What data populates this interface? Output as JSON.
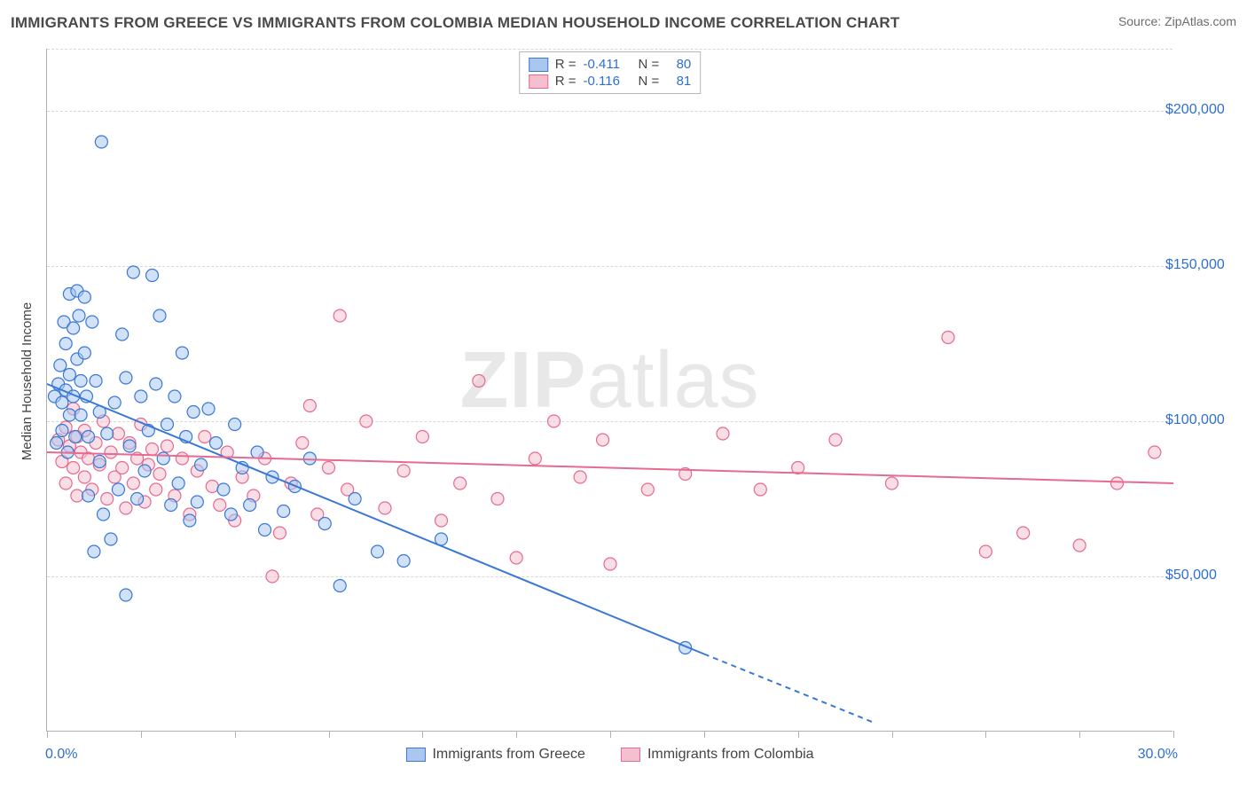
{
  "title": "IMMIGRANTS FROM GREECE VS IMMIGRANTS FROM COLOMBIA MEDIAN HOUSEHOLD INCOME CORRELATION CHART",
  "source": "Source: ZipAtlas.com",
  "watermark": {
    "bold": "ZIP",
    "rest": "atlas"
  },
  "ylabel": "Median Household Income",
  "chart": {
    "type": "scatter",
    "background_color": "#ffffff",
    "grid_color": "#d8d8d8",
    "axis_color": "#b0b0b0",
    "label_color": "#2f6fd0",
    "text_color": "#444444",
    "marker_radius": 7,
    "marker_fill_opacity": 0.28,
    "marker_stroke_width": 1.2,
    "line_width": 2,
    "xlim": [
      0,
      30
    ],
    "ylim": [
      0,
      220000
    ],
    "x_ticks": [
      0,
      2.5,
      5,
      7.5,
      10,
      12.5,
      15,
      17.5,
      20,
      22.5,
      25,
      27.5,
      30
    ],
    "y_gridlines": [
      50000,
      100000,
      150000,
      200000,
      220000
    ],
    "y_tick_labels": [
      {
        "value": 50000,
        "label": "$50,000"
      },
      {
        "value": 100000,
        "label": "$100,000"
      },
      {
        "value": 150000,
        "label": "$150,000"
      },
      {
        "value": 200000,
        "label": "$200,000"
      }
    ],
    "x_min_label": "0.0%",
    "x_max_label": "30.0%",
    "series": [
      {
        "name": "Immigrants from Greece",
        "color": "#3a78d6",
        "fill": "#a9c7ef",
        "R": "-0.411",
        "N": "80",
        "trend": {
          "x1": 0,
          "y1": 112000,
          "x2": 17.5,
          "y2": 25000,
          "dashed_ext_x2": 22,
          "dashed_ext_y2": 3000
        },
        "points": [
          [
            0.2,
            108000
          ],
          [
            0.25,
            93000
          ],
          [
            0.3,
            112000
          ],
          [
            0.35,
            118000
          ],
          [
            0.4,
            106000
          ],
          [
            0.4,
            97000
          ],
          [
            0.45,
            132000
          ],
          [
            0.5,
            125000
          ],
          [
            0.5,
            110000
          ],
          [
            0.55,
            90000
          ],
          [
            0.6,
            141000
          ],
          [
            0.6,
            115000
          ],
          [
            0.6,
            102000
          ],
          [
            0.7,
            130000
          ],
          [
            0.7,
            108000
          ],
          [
            0.75,
            95000
          ],
          [
            0.8,
            142000
          ],
          [
            0.8,
            120000
          ],
          [
            0.85,
            134000
          ],
          [
            0.9,
            113000
          ],
          [
            0.9,
            102000
          ],
          [
            1.0,
            140000
          ],
          [
            1.0,
            122000
          ],
          [
            1.05,
            108000
          ],
          [
            1.1,
            95000
          ],
          [
            1.1,
            76000
          ],
          [
            1.2,
            132000
          ],
          [
            1.25,
            58000
          ],
          [
            1.3,
            113000
          ],
          [
            1.4,
            103000
          ],
          [
            1.4,
            87000
          ],
          [
            1.45,
            190000
          ],
          [
            1.5,
            70000
          ],
          [
            1.6,
            96000
          ],
          [
            1.7,
            62000
          ],
          [
            1.8,
            106000
          ],
          [
            1.9,
            78000
          ],
          [
            2.0,
            128000
          ],
          [
            2.1,
            114000
          ],
          [
            2.2,
            92000
          ],
          [
            2.3,
            148000
          ],
          [
            2.4,
            75000
          ],
          [
            2.5,
            108000
          ],
          [
            2.6,
            84000
          ],
          [
            2.7,
            97000
          ],
          [
            2.8,
            147000
          ],
          [
            2.9,
            112000
          ],
          [
            3.0,
            134000
          ],
          [
            3.1,
            88000
          ],
          [
            3.2,
            99000
          ],
          [
            3.3,
            73000
          ],
          [
            3.4,
            108000
          ],
          [
            3.5,
            80000
          ],
          [
            3.6,
            122000
          ],
          [
            3.7,
            95000
          ],
          [
            3.8,
            68000
          ],
          [
            3.9,
            103000
          ],
          [
            4.0,
            74000
          ],
          [
            4.1,
            86000
          ],
          [
            4.3,
            104000
          ],
          [
            4.5,
            93000
          ],
          [
            4.7,
            78000
          ],
          [
            4.9,
            70000
          ],
          [
            5.0,
            99000
          ],
          [
            5.2,
            85000
          ],
          [
            5.4,
            73000
          ],
          [
            5.6,
            90000
          ],
          [
            5.8,
            65000
          ],
          [
            6.0,
            82000
          ],
          [
            6.3,
            71000
          ],
          [
            6.6,
            79000
          ],
          [
            7.0,
            88000
          ],
          [
            7.4,
            67000
          ],
          [
            7.8,
            47000
          ],
          [
            8.2,
            75000
          ],
          [
            8.8,
            58000
          ],
          [
            9.5,
            55000
          ],
          [
            10.5,
            62000
          ],
          [
            2.1,
            44000
          ],
          [
            17.0,
            27000
          ]
        ]
      },
      {
        "name": "Immigrants from Colombia",
        "color": "#e76a8f",
        "fill": "#f4c0cf",
        "R": "-0.116",
        "N": "81",
        "trend": {
          "x1": 0,
          "y1": 90000,
          "x2": 30,
          "y2": 80000
        },
        "points": [
          [
            0.3,
            94000
          ],
          [
            0.4,
            87000
          ],
          [
            0.5,
            98000
          ],
          [
            0.5,
            80000
          ],
          [
            0.6,
            92000
          ],
          [
            0.7,
            104000
          ],
          [
            0.7,
            85000
          ],
          [
            0.8,
            95000
          ],
          [
            0.8,
            76000
          ],
          [
            0.9,
            90000
          ],
          [
            1.0,
            97000
          ],
          [
            1.0,
            82000
          ],
          [
            1.1,
            88000
          ],
          [
            1.2,
            78000
          ],
          [
            1.3,
            93000
          ],
          [
            1.4,
            86000
          ],
          [
            1.5,
            100000
          ],
          [
            1.6,
            75000
          ],
          [
            1.7,
            90000
          ],
          [
            1.8,
            82000
          ],
          [
            1.9,
            96000
          ],
          [
            2.0,
            85000
          ],
          [
            2.1,
            72000
          ],
          [
            2.2,
            93000
          ],
          [
            2.3,
            80000
          ],
          [
            2.4,
            88000
          ],
          [
            2.5,
            99000
          ],
          [
            2.6,
            74000
          ],
          [
            2.7,
            86000
          ],
          [
            2.8,
            91000
          ],
          [
            2.9,
            78000
          ],
          [
            3.0,
            83000
          ],
          [
            3.2,
            92000
          ],
          [
            3.4,
            76000
          ],
          [
            3.6,
            88000
          ],
          [
            3.8,
            70000
          ],
          [
            4.0,
            84000
          ],
          [
            4.2,
            95000
          ],
          [
            4.4,
            79000
          ],
          [
            4.6,
            73000
          ],
          [
            4.8,
            90000
          ],
          [
            5.0,
            68000
          ],
          [
            5.2,
            82000
          ],
          [
            5.5,
            76000
          ],
          [
            5.8,
            88000
          ],
          [
            6.0,
            50000
          ],
          [
            6.2,
            64000
          ],
          [
            6.5,
            80000
          ],
          [
            6.8,
            93000
          ],
          [
            7.0,
            105000
          ],
          [
            7.2,
            70000
          ],
          [
            7.5,
            85000
          ],
          [
            7.8,
            134000
          ],
          [
            8.0,
            78000
          ],
          [
            8.5,
            100000
          ],
          [
            9.0,
            72000
          ],
          [
            9.5,
            84000
          ],
          [
            10.0,
            95000
          ],
          [
            10.5,
            68000
          ],
          [
            11.0,
            80000
          ],
          [
            11.5,
            113000
          ],
          [
            12.0,
            75000
          ],
          [
            12.5,
            56000
          ],
          [
            13.0,
            88000
          ],
          [
            13.5,
            100000
          ],
          [
            14.2,
            82000
          ],
          [
            15.0,
            54000
          ],
          [
            16.0,
            78000
          ],
          [
            17.0,
            83000
          ],
          [
            18.0,
            96000
          ],
          [
            19.0,
            78000
          ],
          [
            20.0,
            85000
          ],
          [
            21.0,
            94000
          ],
          [
            22.5,
            80000
          ],
          [
            24.0,
            127000
          ],
          [
            25.0,
            58000
          ],
          [
            26.0,
            64000
          ],
          [
            27.5,
            60000
          ],
          [
            28.5,
            80000
          ],
          [
            29.5,
            90000
          ],
          [
            14.8,
            94000
          ]
        ]
      }
    ]
  },
  "legend": {
    "r_label": "R =",
    "n_label": "N ="
  }
}
